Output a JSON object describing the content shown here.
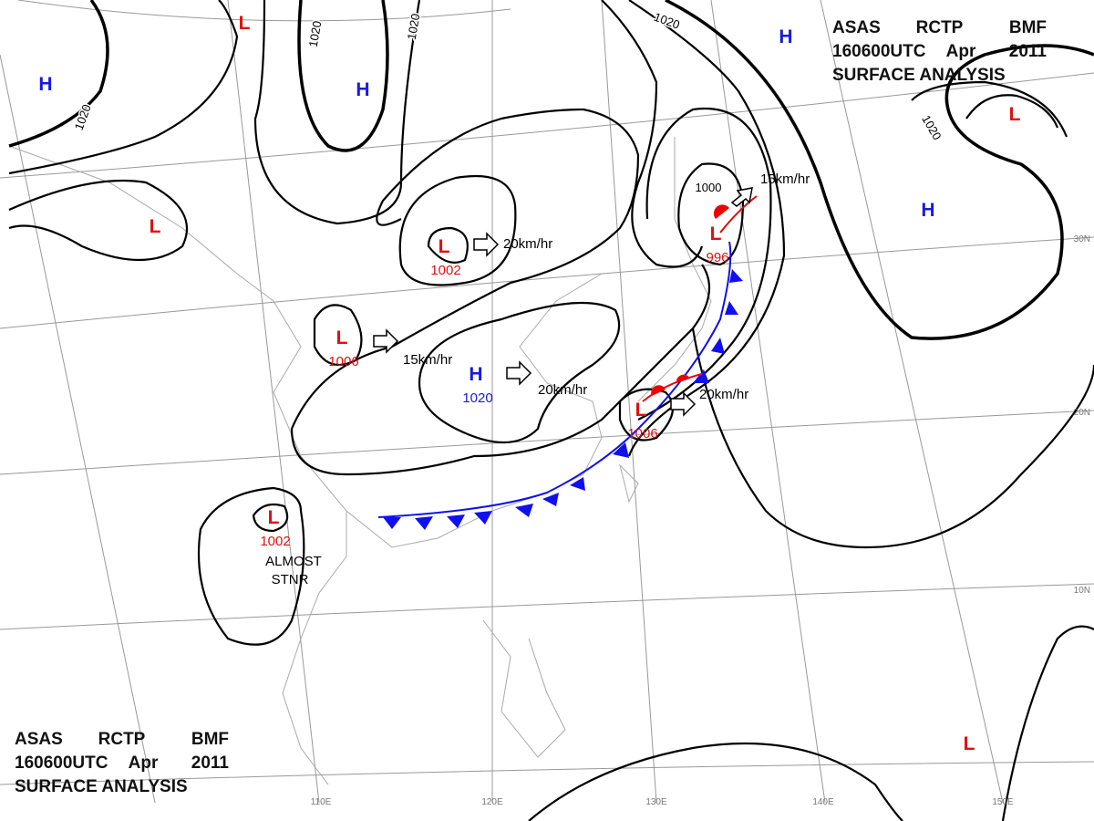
{
  "header": {
    "agency": "ASAS",
    "station": "RCTP",
    "code": "BMF",
    "time": "160600UTC",
    "month": "Apr",
    "year": "2011",
    "product": "SURFACE ANALYSIS"
  },
  "footer": {
    "agency": "ASAS",
    "station": "RCTP",
    "code": "BMF",
    "time": "160600UTC",
    "month": "Apr",
    "year": "2011",
    "product": "SURFACE ANALYSIS"
  },
  "centers": [
    {
      "type": "L"
    },
    {
      "type": "H"
    },
    {
      "type": "H"
    },
    {
      "type": "L"
    },
    {
      "type": "L",
      "pressure": 1002
    },
    {
      "type": "L",
      "pressure": 1006
    },
    {
      "type": "H",
      "pressure": 1020
    },
    {
      "type": "L",
      "pressure": 1002
    },
    {
      "type": "L",
      "pressure": 996
    },
    {
      "type": "L",
      "pressure": 1006
    },
    {
      "type": "H"
    },
    {
      "type": "L"
    },
    {
      "type": "H"
    },
    {
      "type": "L"
    }
  ],
  "isobar_labels": [
    1020,
    1020,
    1020,
    1020,
    1020,
    1000
  ],
  "motions": [
    "20km/hr",
    "15km/hr",
    "20km/hr",
    "20km/hr",
    "15km/hr"
  ],
  "note": [
    "ALMOST",
    "STNR"
  ],
  "latitudes": [
    "30N",
    "20N",
    "10N"
  ],
  "longitudes": [
    "110E",
    "120E",
    "130E",
    "140E",
    "150E"
  ]
}
